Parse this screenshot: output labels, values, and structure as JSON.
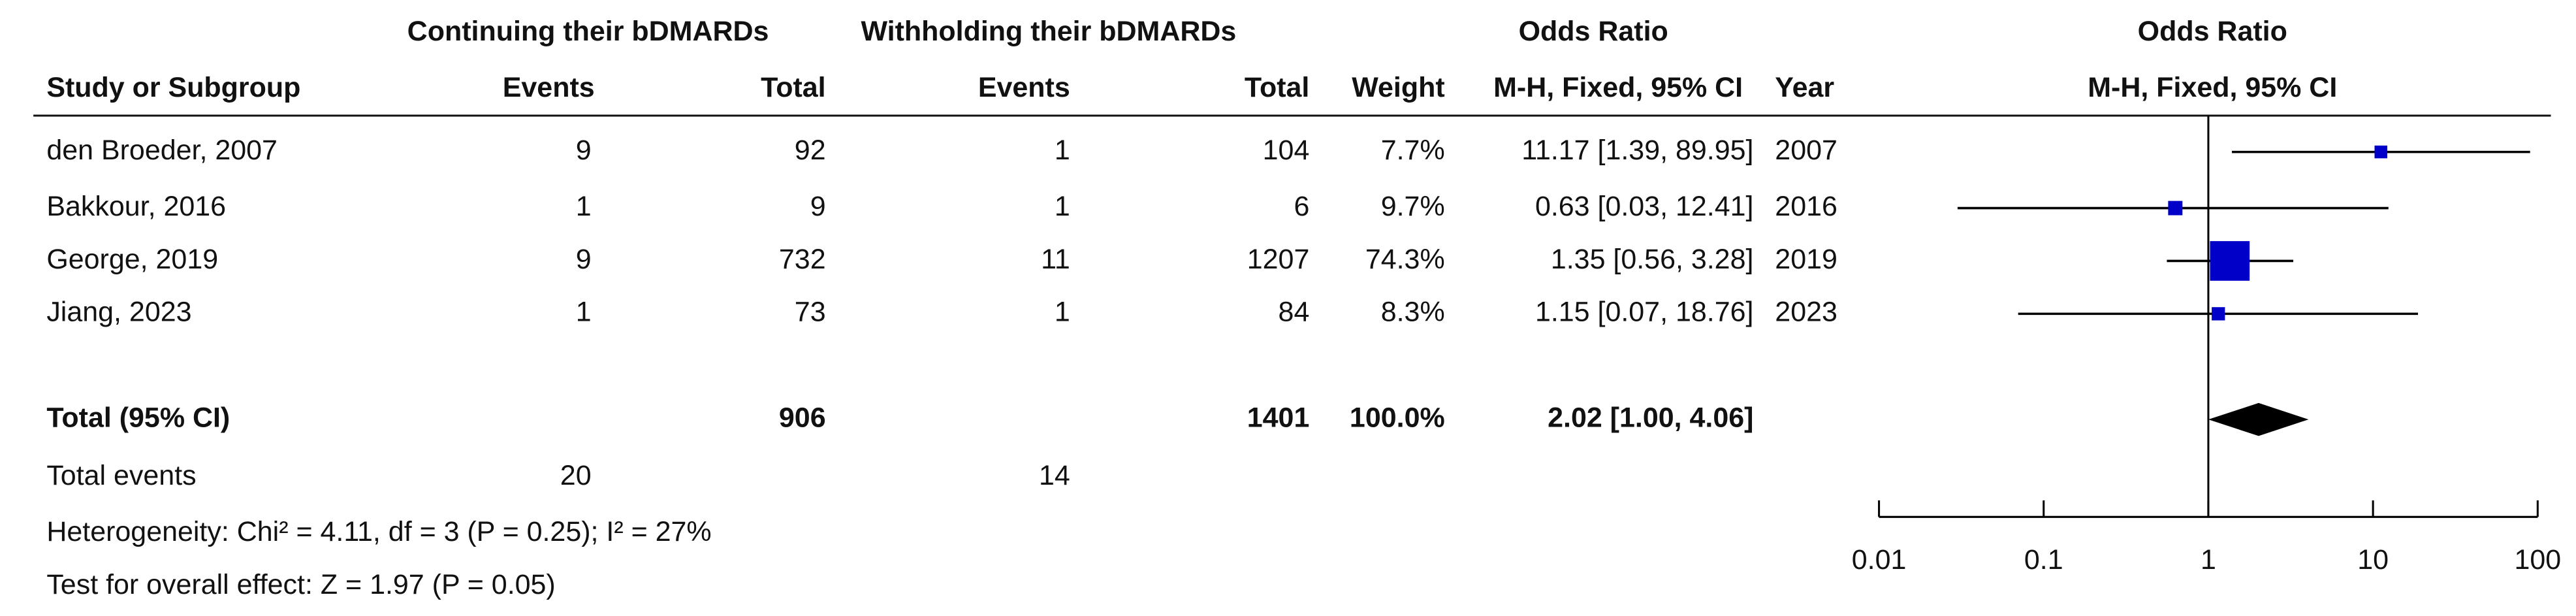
{
  "chart_data": {
    "type": "forest",
    "group_headers": [
      "Continuing their bDMARDs",
      "Withholding their bDMARDs"
    ],
    "or_header": "Odds Ratio",
    "or_method": "M-H, Fixed, 95% CI",
    "plot_header": "Odds Ratio",
    "plot_method": "M-H, Fixed, 95% CI",
    "columns": [
      "Study or Subgroup",
      "Events",
      "Total",
      "Events",
      "Total",
      "Weight",
      "Year"
    ],
    "studies": [
      {
        "name": "den Broeder, 2007",
        "events_1": 9,
        "total_1": 92,
        "events_2": 1,
        "total_2": 104,
        "weight": 7.7,
        "weight_label": "7.7%",
        "odds_ratio": 11.17,
        "ci": [
          1.39,
          89.95
        ],
        "or_label": "11.17 [1.39, 89.95]",
        "year": 2007
      },
      {
        "name": "Bakkour, 2016",
        "events_1": 1,
        "total_1": 9,
        "events_2": 1,
        "total_2": 6,
        "weight": 9.7,
        "weight_label": "9.7%",
        "odds_ratio": 0.63,
        "ci": [
          0.03,
          12.41
        ],
        "or_label": "0.63 [0.03, 12.41]",
        "year": 2016
      },
      {
        "name": "George, 2019",
        "events_1": 9,
        "total_1": 732,
        "events_2": 11,
        "total_2": 1207,
        "weight": 74.3,
        "weight_label": "74.3%",
        "odds_ratio": 1.35,
        "ci": [
          0.56,
          3.28
        ],
        "or_label": "1.35 [0.56, 3.28]",
        "year": 2019
      },
      {
        "name": "Jiang, 2023",
        "events_1": 1,
        "total_1": 73,
        "events_2": 1,
        "total_2": 84,
        "weight": 8.3,
        "weight_label": "8.3%",
        "odds_ratio": 1.15,
        "ci": [
          0.07,
          18.76
        ],
        "or_label": "1.15 [0.07, 18.76]",
        "year": 2023
      }
    ],
    "total": {
      "name": "Total (95% CI)",
      "total_1": 906,
      "total_2": 1401,
      "weight_label": "100.0%",
      "odds_ratio": 2.02,
      "ci": [
        1.0,
        4.06
      ],
      "or_label": "2.02 [1.00, 4.06]"
    },
    "total_events": {
      "label": "Total events",
      "events_1": 20,
      "events_2": 14
    },
    "heterogeneity": "Heterogeneity: Chi² = 4.11, df = 3 (P = 0.25); I² = 27%",
    "overall_effect": "Test for overall effect: Z = 1.97 (P = 0.05)",
    "log_x": true,
    "xlim": [
      0.01,
      100
    ],
    "xticks": [
      0.01,
      0.1,
      1,
      10,
      100
    ],
    "marker_color": "#0000c8",
    "diamond_color": "#000000"
  }
}
